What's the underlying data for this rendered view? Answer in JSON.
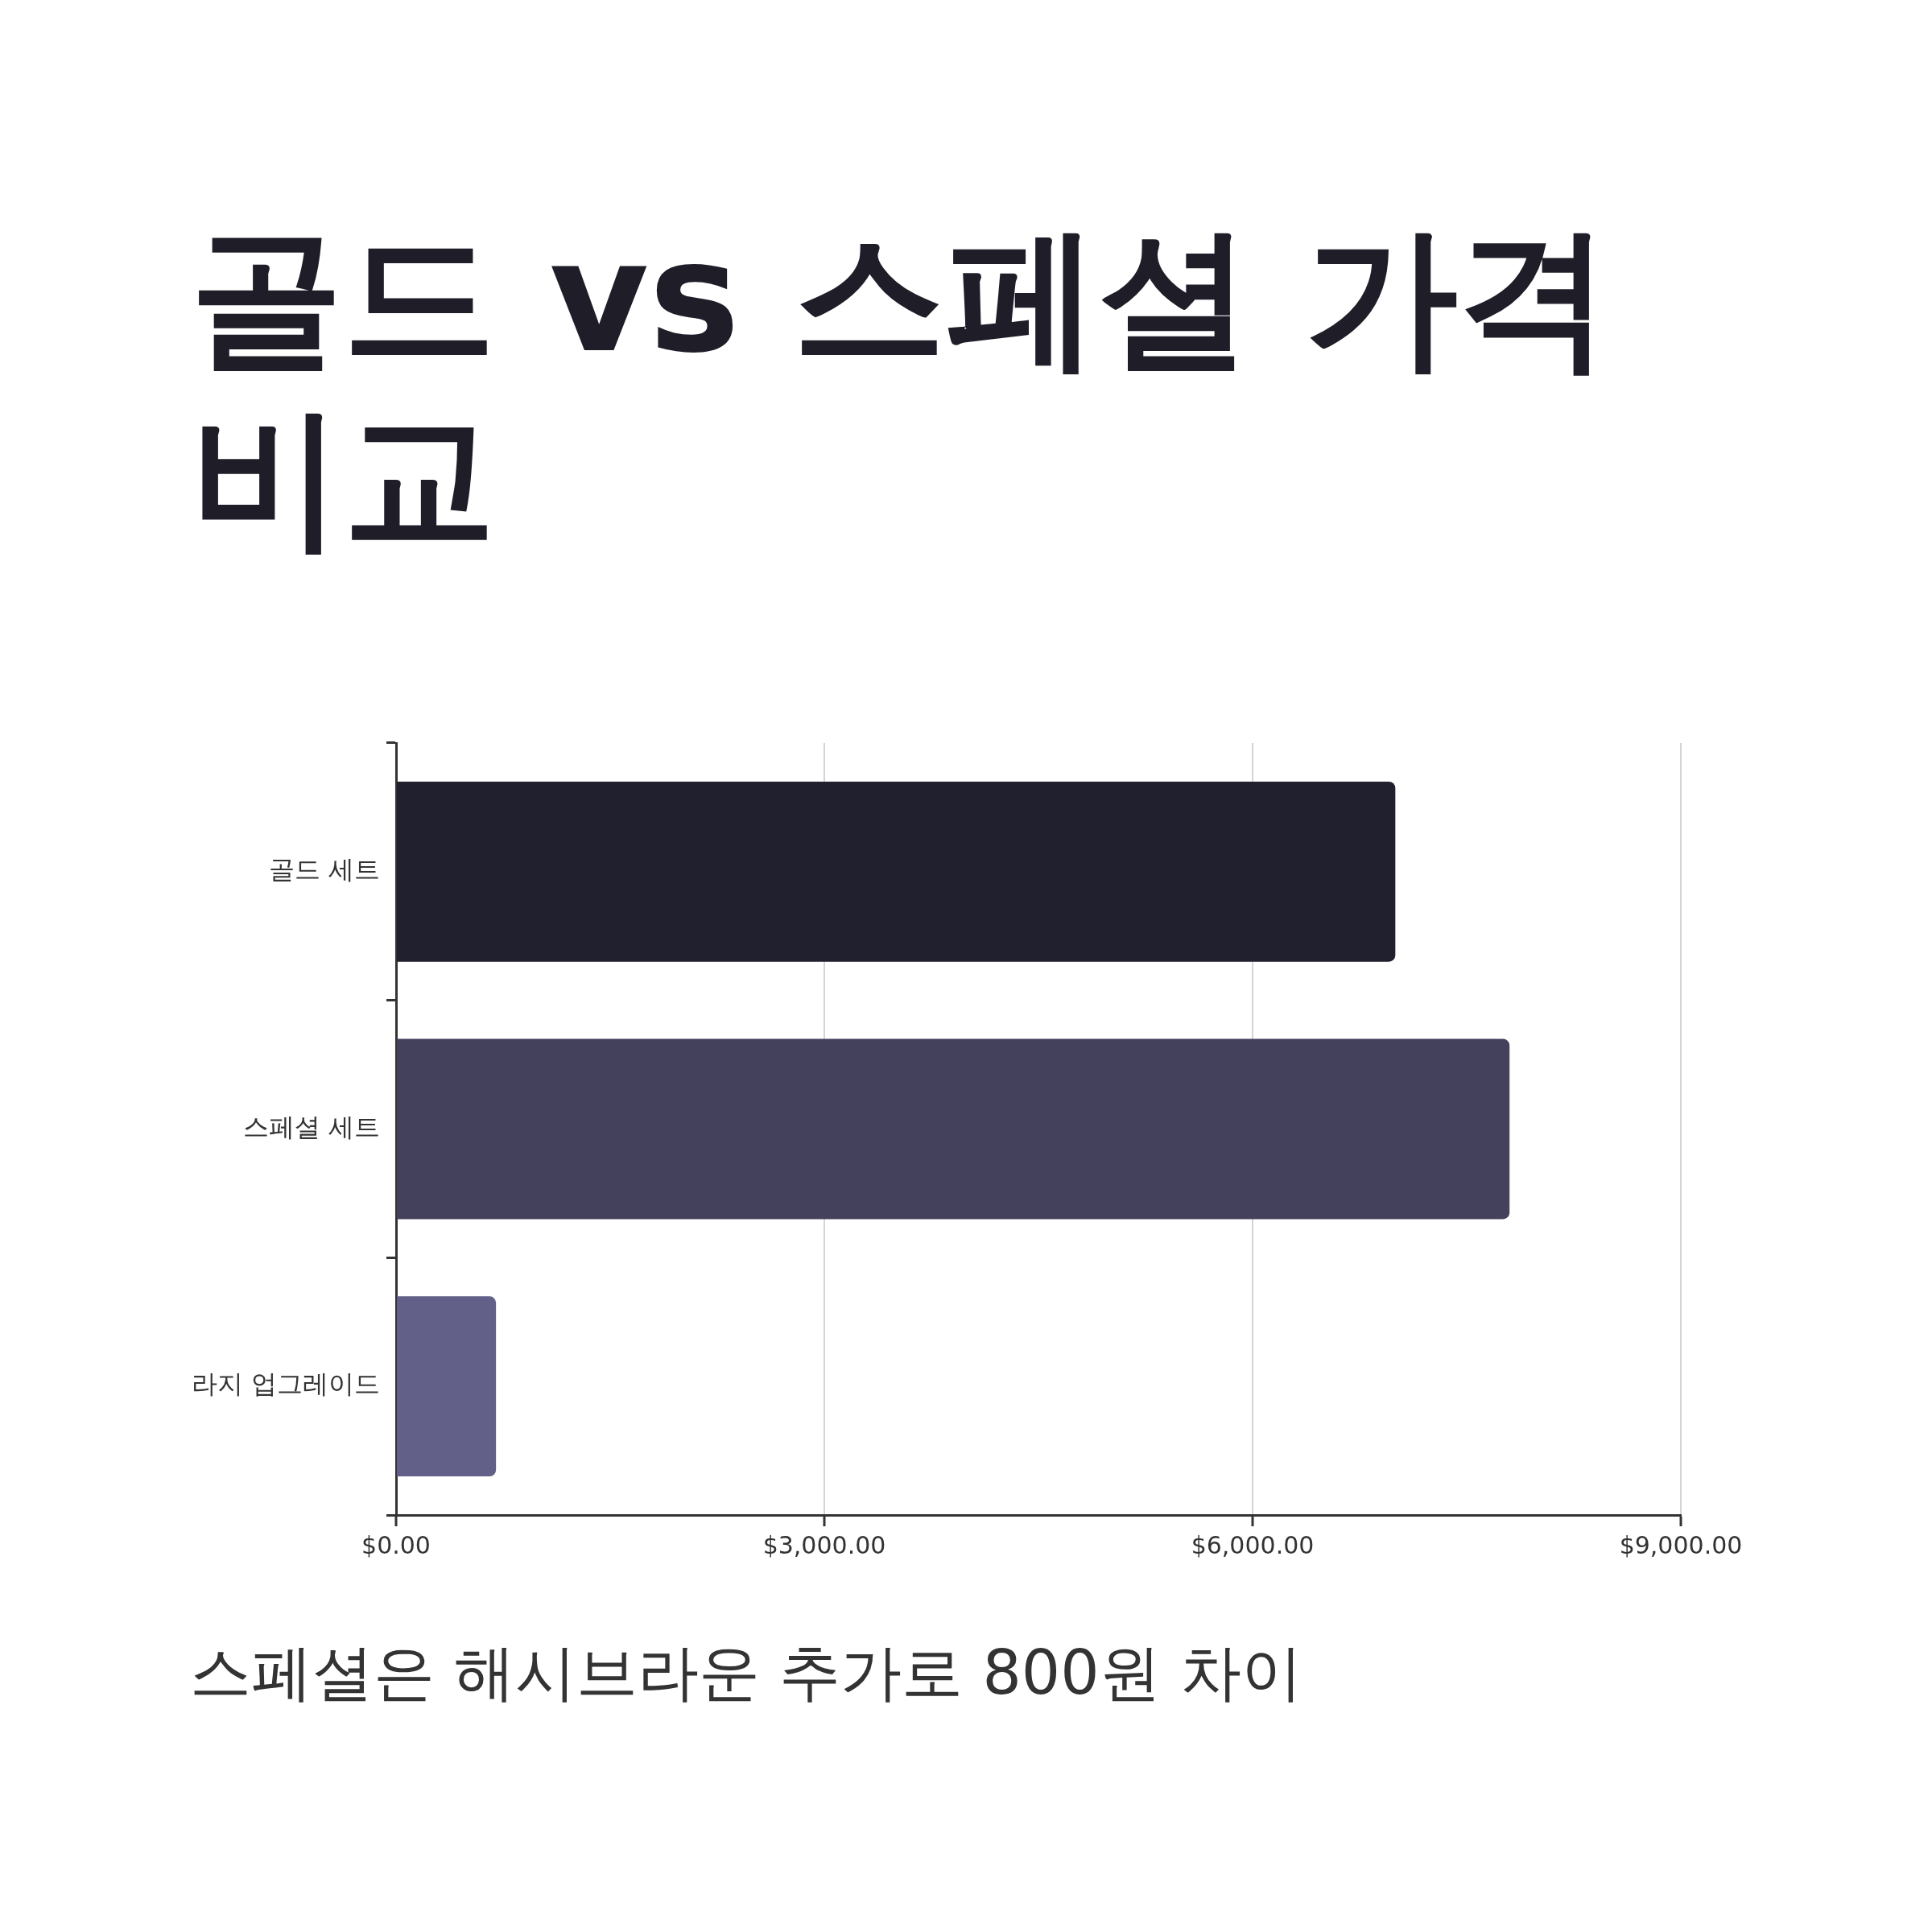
{
  "chart_data": {
    "type": "bar",
    "orientation": "horizontal",
    "title": "골드 vs 스페셜 가격 비교",
    "categories": [
      "골드 세트",
      "스페셜 세트",
      "라지 업그레이드"
    ],
    "values": [
      7000,
      7800,
      700
    ],
    "colors": [
      "#21202e",
      "#43415c",
      "#625f88"
    ],
    "xlim": [
      0,
      9000
    ],
    "xticks": [
      {
        "value": 0,
        "label": "$0.00"
      },
      {
        "value": 3000,
        "label": "$3,000.00"
      },
      {
        "value": 6000,
        "label": "$6,000.00"
      },
      {
        "value": 9000,
        "label": "$9,000.00"
      }
    ],
    "grid": "x",
    "legend": false,
    "annotations": [
      "스페셜은 해시브라운 추가로 800원 차이"
    ]
  }
}
